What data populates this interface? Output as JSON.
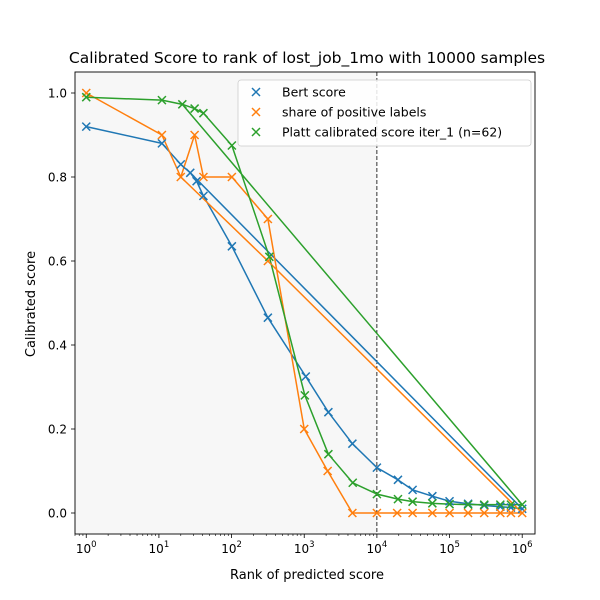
{
  "chart_data": {
    "type": "line",
    "title": "Calibrated Score to rank of lost_job_1mo with 10000 samples",
    "xlabel": "Rank of predicted score",
    "ylabel": "Calibrated score",
    "xscale": "log",
    "xlim": [
      0.7,
      1500000
    ],
    "ylim": [
      -0.05,
      1.05
    ],
    "xticks": [
      {
        "value": 1,
        "base": "10",
        "exp": "0"
      },
      {
        "value": 10,
        "base": "10",
        "exp": "1"
      },
      {
        "value": 100,
        "base": "10",
        "exp": "2"
      },
      {
        "value": 1000,
        "base": "10",
        "exp": "3"
      },
      {
        "value": 10000,
        "base": "10",
        "exp": "4"
      },
      {
        "value": 100000,
        "base": "10",
        "exp": "5"
      },
      {
        "value": 1000000,
        "base": "10",
        "exp": "6"
      }
    ],
    "yticks": [
      {
        "value": 0.0,
        "label": "0.0"
      },
      {
        "value": 0.2,
        "label": "0.2"
      },
      {
        "value": 0.4,
        "label": "0.4"
      },
      {
        "value": 0.6,
        "label": "0.6"
      },
      {
        "value": 0.8,
        "label": "0.8"
      },
      {
        "value": 1.0,
        "label": "1.0"
      }
    ],
    "shaded_region": {
      "x_from": 0.7,
      "x_to": 10000,
      "color": "#f7f7f7"
    },
    "vline": {
      "x": 10000,
      "style": "dashed",
      "color": "#000000"
    },
    "legend_position": "top-right",
    "series": [
      {
        "name": "Bert score",
        "color": "#1f77b4",
        "marker": "x",
        "points": [
          [
            1,
            0.92
          ],
          [
            11,
            0.88
          ],
          [
            20,
            0.83
          ],
          [
            27,
            0.81
          ],
          [
            33,
            0.79
          ],
          [
            41,
            0.755
          ],
          [
            101,
            0.635
          ],
          [
            316,
            0.465
          ],
          [
            1050,
            0.325
          ],
          [
            2150,
            0.24
          ],
          [
            4600,
            0.165
          ],
          [
            10000,
            0.108
          ],
          [
            19500,
            0.079
          ],
          [
            31000,
            0.055
          ],
          [
            58000,
            0.04
          ],
          [
            100000,
            0.028
          ],
          [
            180000,
            0.022
          ],
          [
            300000,
            0.018
          ],
          [
            500000,
            0.015
          ],
          [
            700000,
            0.013
          ],
          [
            1000000,
            0.01
          ]
        ],
        "line_order": [
          [
            1,
            0.92
          ],
          [
            11,
            0.88
          ],
          [
            20,
            0.83
          ],
          [
            27,
            0.81
          ],
          [
            33,
            0.79
          ],
          [
            41,
            0.755
          ],
          [
            101,
            0.635
          ],
          [
            316,
            0.465
          ],
          [
            1050,
            0.325
          ],
          [
            2150,
            0.24
          ],
          [
            4600,
            0.165
          ],
          [
            10000,
            0.108
          ],
          [
            19500,
            0.079
          ],
          [
            31000,
            0.055
          ],
          [
            58000,
            0.04
          ],
          [
            100000,
            0.028
          ],
          [
            180000,
            0.022
          ],
          [
            300000,
            0.018
          ],
          [
            500000,
            0.015
          ],
          [
            700000,
            0.013
          ],
          [
            1000000,
            0.01
          ],
          [
            27,
            0.81
          ]
        ]
      },
      {
        "name": "share of positive labels",
        "color": "#ff7f0e",
        "marker": "x",
        "points": [
          [
            1,
            1.0
          ],
          [
            11,
            0.9
          ],
          [
            20,
            0.8
          ],
          [
            31,
            0.9
          ],
          [
            41,
            0.8
          ],
          [
            101,
            0.8
          ],
          [
            316,
            0.7
          ],
          [
            316,
            0.6
          ],
          [
            1000,
            0.2
          ],
          [
            2100,
            0.1
          ],
          [
            4600,
            0.0
          ],
          [
            10000,
            0.0
          ],
          [
            19000,
            0.0
          ],
          [
            31000,
            0.0
          ],
          [
            58000,
            0.0
          ],
          [
            100000,
            0.0
          ],
          [
            180000,
            0.0
          ],
          [
            300000,
            0.0
          ],
          [
            500000,
            0.0
          ],
          [
            700000,
            0.0
          ],
          [
            1000000,
            0.0
          ]
        ],
        "line_order": [
          [
            1,
            1.0
          ],
          [
            11,
            0.9
          ],
          [
            20,
            0.8
          ],
          [
            31,
            0.9
          ],
          [
            41,
            0.8
          ],
          [
            101,
            0.8
          ],
          [
            316,
            0.7
          ],
          [
            1000,
            0.2
          ],
          [
            2100,
            0.1
          ],
          [
            4600,
            0.0
          ],
          [
            10000,
            0.0
          ],
          [
            19000,
            0.0
          ],
          [
            31000,
            0.0
          ],
          [
            58000,
            0.0
          ],
          [
            100000,
            0.0
          ],
          [
            180000,
            0.0
          ],
          [
            300000,
            0.0
          ],
          [
            500000,
            0.0
          ],
          [
            700000,
            0.0
          ],
          [
            1000000,
            0.0
          ],
          [
            316,
            0.6
          ],
          [
            20,
            0.8
          ]
        ]
      },
      {
        "name": "Platt calibrated score iter_1 (n=62)",
        "color": "#2ca02c",
        "marker": "x",
        "points": [
          [
            1,
            0.99
          ],
          [
            11,
            0.983
          ],
          [
            21,
            0.973
          ],
          [
            31,
            0.963
          ],
          [
            41,
            0.952
          ],
          [
            101,
            0.875
          ],
          [
            331,
            0.61
          ],
          [
            1020,
            0.28
          ],
          [
            2150,
            0.14
          ],
          [
            4650,
            0.072
          ],
          [
            10000,
            0.045
          ],
          [
            19500,
            0.033
          ],
          [
            31000,
            0.027
          ],
          [
            58000,
            0.023
          ],
          [
            100000,
            0.021
          ],
          [
            180000,
            0.02
          ],
          [
            300000,
            0.02
          ],
          [
            500000,
            0.02
          ],
          [
            700000,
            0.02
          ],
          [
            1000000,
            0.02
          ]
        ],
        "line_order": [
          [
            1,
            0.99
          ],
          [
            11,
            0.983
          ],
          [
            21,
            0.973
          ],
          [
            31,
            0.963
          ],
          [
            41,
            0.952
          ],
          [
            101,
            0.875
          ],
          [
            331,
            0.61
          ],
          [
            1020,
            0.28
          ],
          [
            2150,
            0.14
          ],
          [
            4650,
            0.072
          ],
          [
            10000,
            0.045
          ],
          [
            19500,
            0.033
          ],
          [
            31000,
            0.027
          ],
          [
            58000,
            0.023
          ],
          [
            100000,
            0.021
          ],
          [
            180000,
            0.02
          ],
          [
            300000,
            0.02
          ],
          [
            500000,
            0.02
          ],
          [
            700000,
            0.02
          ],
          [
            1000000,
            0.02
          ],
          [
            21,
            0.973
          ]
        ]
      }
    ]
  }
}
